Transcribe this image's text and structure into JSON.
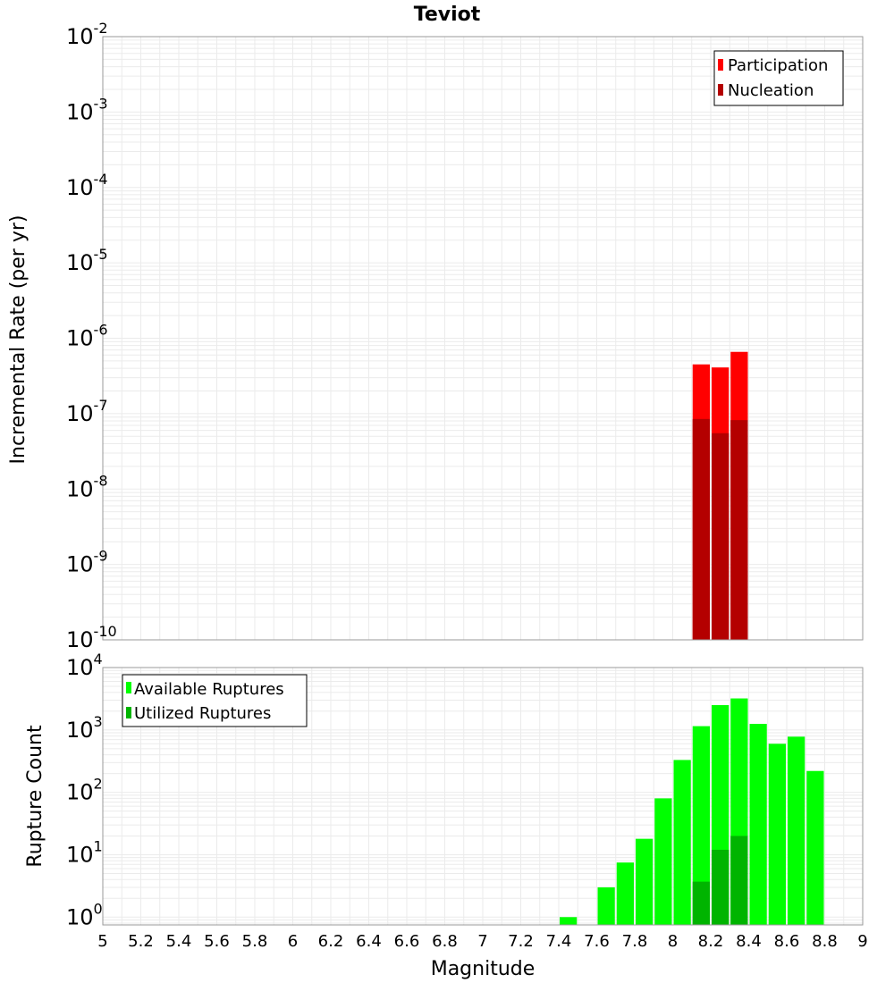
{
  "title": "Teviot",
  "colors": {
    "participation": "#ff0000",
    "nucleation": "#b40000",
    "available": "#00ff00",
    "utilized": "#00b400"
  },
  "chart_data": [
    {
      "type": "bar",
      "name": "rates",
      "title": "Teviot",
      "xlabel": "Magnitude",
      "ylabel": "Incremental Rate (per yr)",
      "yscale": "log",
      "ylim": [
        1e-10,
        0.01
      ],
      "xlim": [
        5,
        9
      ],
      "bin_width": 0.1,
      "y_tick_exponents": [
        -2,
        -3,
        -4,
        -5,
        -6,
        -7,
        -8,
        -9,
        -10
      ],
      "legend": {
        "position": "top-right",
        "entries": [
          "Participation",
          "Nucleation"
        ]
      },
      "series": [
        {
          "name": "Participation",
          "color": "#ff0000",
          "x": [
            8.15,
            8.25,
            8.35
          ],
          "values": [
            4.5e-07,
            4.1e-07,
            6.6e-07
          ]
        },
        {
          "name": "Nucleation",
          "color": "#b40000",
          "x": [
            8.15,
            8.25,
            8.35
          ],
          "values": [
            8.5e-08,
            5.5e-08,
            8.2e-08
          ]
        }
      ]
    },
    {
      "type": "bar",
      "name": "counts",
      "xlabel": "Magnitude",
      "ylabel": "Rupture Count",
      "yscale": "log",
      "ylim": [
        0.75,
        10000
      ],
      "xlim": [
        5,
        9
      ],
      "bin_width": 0.1,
      "x_ticks": [
        "5",
        "5.2",
        "5.4",
        "5.6",
        "5.8",
        "6",
        "6.2",
        "6.4",
        "6.6",
        "6.8",
        "7",
        "7.2",
        "7.4",
        "7.6",
        "7.8",
        "8",
        "8.2",
        "8.4",
        "8.6",
        "8.8",
        "9"
      ],
      "y_tick_exponents": [
        4,
        3,
        2,
        1,
        0
      ],
      "legend": {
        "position": "top-left",
        "entries": [
          "Available Ruptures",
          "Utilized Ruptures"
        ]
      },
      "series": [
        {
          "name": "Available Ruptures",
          "color": "#00ff00",
          "x": [
            7.45,
            7.65,
            7.75,
            7.85,
            7.95,
            8.05,
            8.15,
            8.25,
            8.35,
            8.45,
            8.55,
            8.65,
            8.75
          ],
          "values": [
            1,
            3,
            7.5,
            18,
            80,
            330,
            1150,
            2500,
            3200,
            1250,
            600,
            780,
            220
          ]
        },
        {
          "name": "Utilized Ruptures",
          "color": "#00b400",
          "x": [
            8.15,
            8.25,
            8.35
          ],
          "values": [
            3.7,
            12,
            20
          ]
        }
      ]
    }
  ]
}
